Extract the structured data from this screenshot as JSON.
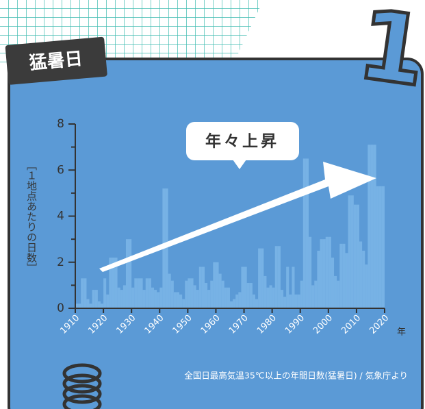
{
  "badge": "猛暑日",
  "badge_number": "1",
  "chart_data": {
    "type": "bar",
    "ylabel": "［１地点あたりの日数］",
    "xlabel": "年",
    "annotation": "年々上昇",
    "source": "全国日最高気温35℃以上の年間日数(猛暑日) / 気象庁より",
    "x": [
      1910,
      1911,
      1912,
      1913,
      1914,
      1915,
      1916,
      1917,
      1918,
      1919,
      1920,
      1921,
      1922,
      1923,
      1924,
      1925,
      1926,
      1927,
      1928,
      1929,
      1930,
      1931,
      1932,
      1933,
      1934,
      1935,
      1936,
      1937,
      1938,
      1939,
      1940,
      1941,
      1942,
      1943,
      1944,
      1945,
      1946,
      1947,
      1948,
      1949,
      1950,
      1951,
      1952,
      1953,
      1954,
      1955,
      1956,
      1957,
      1958,
      1959,
      1960,
      1961,
      1962,
      1963,
      1964,
      1965,
      1966,
      1967,
      1968,
      1969,
      1970,
      1971,
      1972,
      1973,
      1974,
      1975,
      1976,
      1977,
      1978,
      1979,
      1980,
      1981,
      1982,
      1983,
      1984,
      1985,
      1986,
      1987,
      1988,
      1989,
      1990,
      1991,
      1992,
      1993,
      1994,
      1995,
      1996,
      1997,
      1998,
      1999,
      2000,
      2001,
      2002,
      2003,
      2004,
      2005,
      2006,
      2007,
      2008,
      2009,
      2010,
      2011,
      2012,
      2013,
      2014,
      2015,
      2016,
      2017,
      2018,
      2019
    ],
    "values": [
      0.2,
      0.2,
      1.3,
      1.3,
      0.4,
      0.2,
      0.8,
      0.8,
      0.3,
      0.2,
      1.3,
      0.6,
      2.2,
      2.2,
      2.2,
      0.9,
      0.8,
      1.0,
      3.0,
      3.0,
      0.9,
      1.3,
      1.3,
      1.3,
      0.8,
      1.3,
      1.3,
      0.9,
      0.8,
      0.7,
      0.9,
      5.2,
      5.2,
      1.5,
      1.2,
      0.7,
      0.7,
      0.6,
      0.4,
      1.2,
      1.3,
      1.3,
      1.0,
      0.8,
      1.8,
      1.8,
      1.1,
      0.8,
      1.2,
      2.0,
      2.0,
      1.5,
      1.2,
      0.9,
      0.9,
      0.3,
      0.4,
      0.6,
      0.7,
      1.8,
      1.8,
      1.1,
      1.1,
      0.6,
      0.4,
      2.6,
      2.6,
      1.4,
      0.9,
      1.0,
      0.9,
      2.7,
      2.7,
      0.8,
      0.5,
      1.8,
      0.6,
      1.8,
      0.6,
      0.6,
      1.2,
      6.5,
      6.5,
      3.1,
      1.0,
      1.2,
      2.5,
      3.0,
      3.0,
      3.1,
      3.1,
      2.2,
      1.4,
      1.2,
      2.8,
      2.8,
      2.4,
      4.9,
      4.9,
      4.5,
      4.5,
      2.9,
      2.5,
      1.9,
      7.1,
      7.1,
      7.1,
      5.3,
      5.3,
      5.3
    ],
    "color": "#7db6e8",
    "xlim": [
      1910,
      2020
    ],
    "xticks": [
      1910,
      1920,
      1930,
      1940,
      1950,
      1960,
      1970,
      1980,
      1990,
      2000,
      2010,
      2020
    ],
    "ylim": [
      0,
      8
    ],
    "yticks": [
      0,
      2,
      4,
      6,
      8
    ],
    "yminor_ticks": [
      1,
      3,
      5,
      7
    ]
  }
}
